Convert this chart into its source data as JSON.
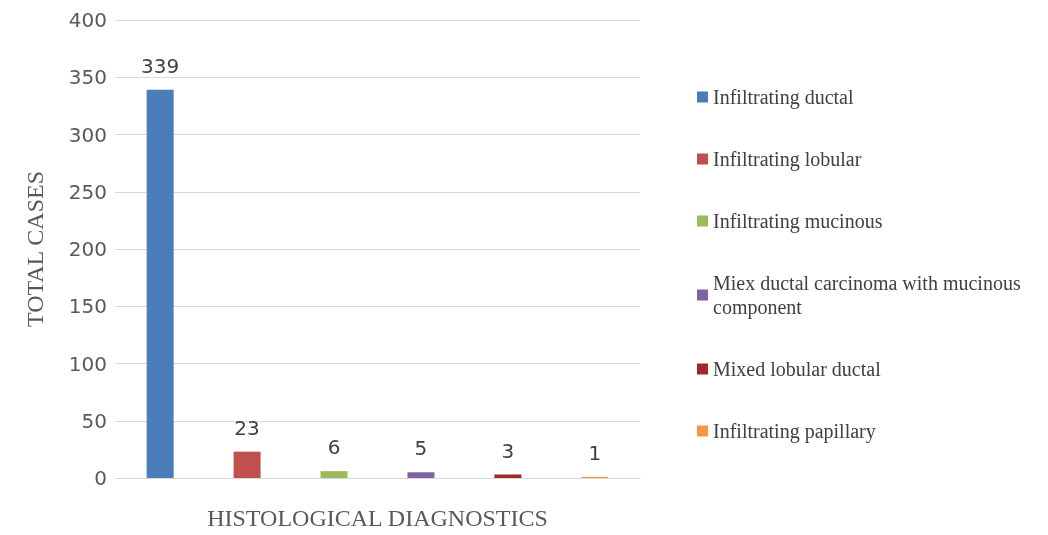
{
  "chart_data": {
    "type": "bar",
    "xlabel": "HISTOLOGICAL DIAGNOSTICS",
    "ylabel": "TOTAL CASES",
    "categories": [
      null
    ],
    "series": [
      {
        "name": "Infiltrating ductal",
        "color": "#4a7ebb",
        "values": [
          339
        ]
      },
      {
        "name": "Infiltrating lobular",
        "color": "#c0504d",
        "values": [
          23
        ]
      },
      {
        "name": "Infiltrating mucinous",
        "color": "#9bbb59",
        "values": [
          6
        ]
      },
      {
        "name": "Miex ductal carcinoma with mucinous component",
        "color": "#8064a2",
        "values": [
          5
        ]
      },
      {
        "name": "Mixed lobular ductal",
        "color": "#a0282a",
        "values": [
          3
        ]
      },
      {
        "name": "Infiltrating papillary",
        "color": "#f79646",
        "values": [
          1
        ]
      }
    ],
    "ylim": [
      0,
      400
    ],
    "yticks": [
      0,
      50,
      100,
      150,
      200,
      250,
      300,
      350,
      400
    ],
    "grid": "y",
    "legend": "right",
    "data_labels": true
  }
}
